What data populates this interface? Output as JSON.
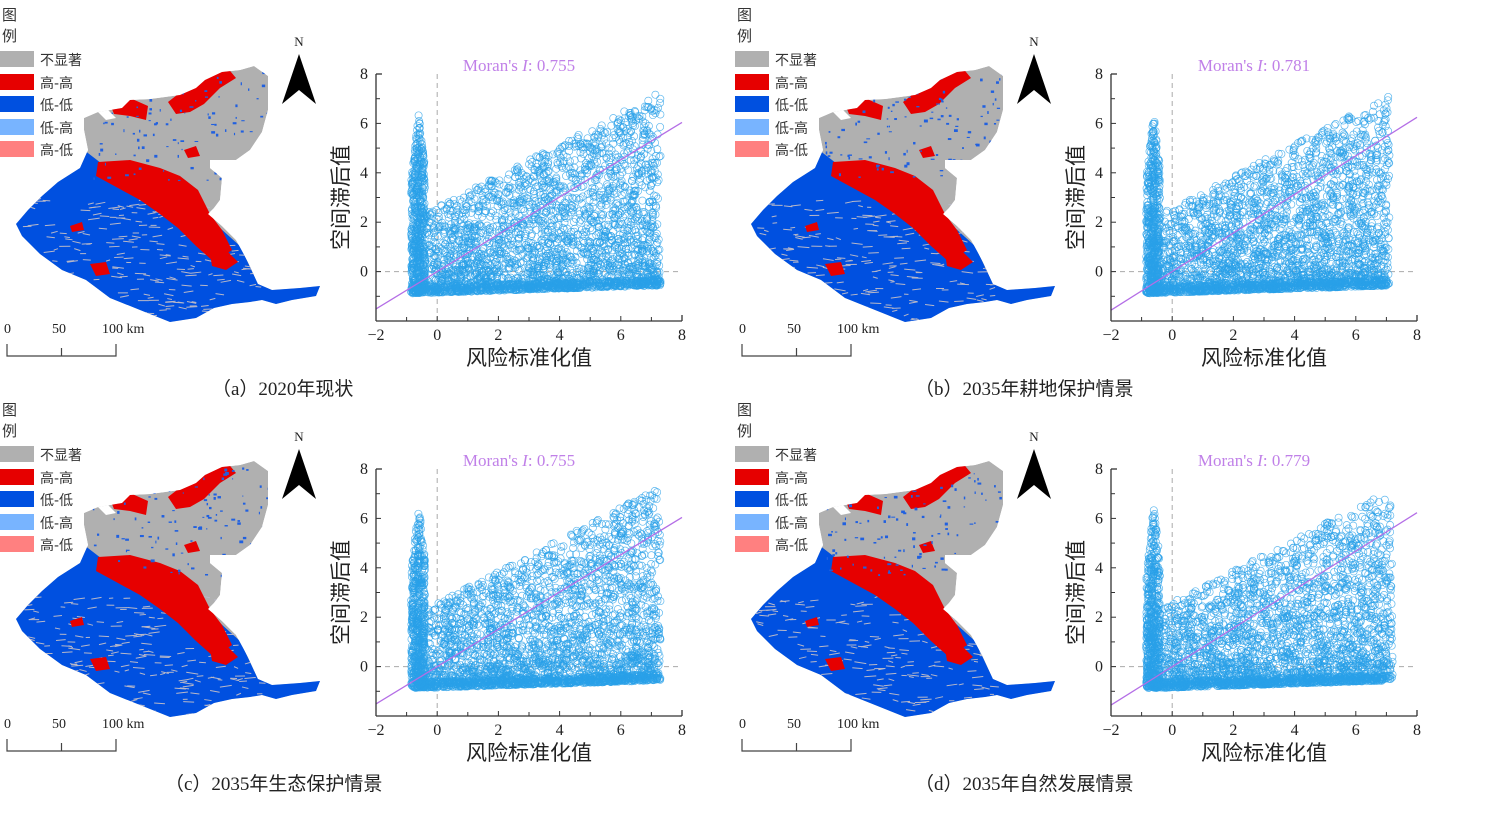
{
  "legend": {
    "title": "图例",
    "items": [
      {
        "label": "不显著",
        "color": "#b0b0b0"
      },
      {
        "label": "高-高",
        "color": "#e60000"
      },
      {
        "label": "低-低",
        "color": "#0050e0"
      },
      {
        "label": "低-高",
        "color": "#78b4ff"
      },
      {
        "label": "高-低",
        "color": "#ff8080"
      }
    ]
  },
  "north_arrow": {
    "label": "N"
  },
  "scale_bar": {
    "labels": [
      "0",
      "50",
      "100 km"
    ]
  },
  "colors": {
    "scatter_points": "#2aa0e8",
    "fit_line": "#b46ee6",
    "moran_text": "#c080e8",
    "reference_line": "#aaaaaa"
  },
  "panels": [
    {
      "id": "a",
      "caption": "（a）2020年现状",
      "moran_label": "Moran's ",
      "moran_i": "I",
      "moran_value": ": 0.755"
    },
    {
      "id": "b",
      "caption": "（b）2035年耕地保护情景",
      "moran_label": "Moran's ",
      "moran_i": "I",
      "moran_value": ": 0.781"
    },
    {
      "id": "c",
      "caption": "（c）2035年生态保护情景",
      "moran_label": "Moran's ",
      "moran_i": "I",
      "moran_value": ": 0.755"
    },
    {
      "id": "d",
      "caption": "（d）2035年自然发展情景",
      "moran_label": "Moran's ",
      "moran_i": "I",
      "moran_value": ": 0.779"
    }
  ],
  "chart_data": [
    {
      "type": "scatter",
      "title": "Moran's I: 0.755",
      "xlabel": "风险标准化值",
      "ylabel": "空间滞后值",
      "xlim": [
        -2,
        8
      ],
      "ylim": [
        -2,
        8
      ],
      "xticks": [
        "−2",
        "0",
        "2",
        "4",
        "6",
        "8"
      ],
      "yticks": [
        "0",
        "2",
        "4",
        "6",
        "8"
      ],
      "reference_lines": {
        "x": 0,
        "y": 0
      },
      "fit_line": {
        "slope": 0.755,
        "intercept": 0
      },
      "point_cloud": {
        "x_range": [
          -0.85,
          7.3
        ],
        "y_range": [
          -0.85,
          7.0
        ],
        "spike_x": [
          -0.85,
          -0.4
        ],
        "spike_ymax": 6.4
      },
      "moran_i": 0.755
    },
    {
      "type": "scatter",
      "title": "Moran's I: 0.781",
      "xlabel": "风险标准化值",
      "ylabel": "空间滞后值",
      "xlim": [
        -2,
        8
      ],
      "ylim": [
        -2,
        8
      ],
      "xticks": [
        "−2",
        "0",
        "2",
        "4",
        "6",
        "8"
      ],
      "yticks": [
        "0",
        "2",
        "4",
        "6",
        "8"
      ],
      "reference_lines": {
        "x": 0,
        "y": 0
      },
      "fit_line": {
        "slope": 0.781,
        "intercept": 0
      },
      "point_cloud": {
        "x_range": [
          -0.85,
          7.1
        ],
        "y_range": [
          -0.85,
          6.85
        ],
        "spike_x": [
          -0.85,
          -0.4
        ],
        "spike_ymax": 6.45
      },
      "moran_i": 0.781
    },
    {
      "type": "scatter",
      "title": "Moran's I: 0.755",
      "xlabel": "风险标准化值",
      "ylabel": "空间滞后值",
      "xlim": [
        -2,
        8
      ],
      "ylim": [
        -2,
        8
      ],
      "xticks": [
        "−2",
        "0",
        "2",
        "4",
        "6",
        "8"
      ],
      "yticks": [
        "0",
        "2",
        "4",
        "6",
        "8"
      ],
      "reference_lines": {
        "x": 0,
        "y": 0
      },
      "fit_line": {
        "slope": 0.755,
        "intercept": 0
      },
      "point_cloud": {
        "x_range": [
          -0.85,
          7.3
        ],
        "y_range": [
          -0.85,
          7.0
        ],
        "spike_x": [
          -0.85,
          -0.4
        ],
        "spike_ymax": 6.6
      },
      "moran_i": 0.755
    },
    {
      "type": "scatter",
      "title": "Moran's I: 0.779",
      "xlabel": "风险标准化值",
      "ylabel": "空间滞后值",
      "xlim": [
        -2,
        8
      ],
      "ylim": [
        -2,
        8
      ],
      "xticks": [
        "−2",
        "0",
        "2",
        "4",
        "6",
        "8"
      ],
      "yticks": [
        "0",
        "2",
        "4",
        "6",
        "8"
      ],
      "reference_lines": {
        "x": 0,
        "y": 0
      },
      "fit_line": {
        "slope": 0.779,
        "intercept": 0
      },
      "point_cloud": {
        "x_range": [
          -0.85,
          7.2
        ],
        "y_range": [
          -0.85,
          7.0
        ],
        "spike_x": [
          -0.85,
          -0.4
        ],
        "spike_ymax": 6.55
      },
      "moran_i": 0.779
    }
  ]
}
